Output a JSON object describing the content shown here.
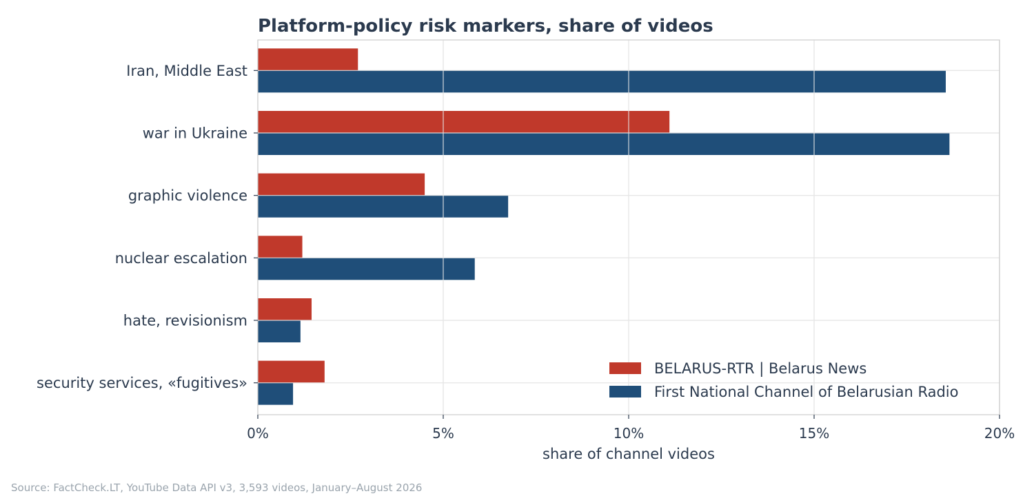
{
  "chart_data": {
    "type": "bar",
    "orientation": "horizontal",
    "title": "Platform-policy risk markers, share of videos",
    "xlabel": "share of channel videos",
    "ylabel": "",
    "xlim": [
      0,
      20
    ],
    "xticks": [
      0,
      5,
      10,
      15,
      20
    ],
    "xtick_labels": [
      "0%",
      "5%",
      "10%",
      "15%",
      "20%"
    ],
    "grid": true,
    "legend_position": "bottom-right",
    "categories": [
      "Iran, Middle East",
      "war in Ukraine",
      "graphic violence",
      "nuclear escalation",
      "hate, revisionism",
      "security services, «fugitives»"
    ],
    "series": [
      {
        "name": "BELARUS-RTR | Belarus News",
        "color": "#c0392b",
        "values": [
          2.7,
          11.1,
          4.5,
          1.2,
          1.45,
          1.8
        ]
      },
      {
        "name": "First National Channel of Belarusian Radio",
        "color": "#1f4e79",
        "values": [
          18.55,
          18.65,
          6.75,
          5.85,
          1.15,
          0.95
        ]
      }
    ],
    "source": "Source: FactCheck.LT, YouTube Data API v3, 3,593 videos, January–August 2026"
  }
}
